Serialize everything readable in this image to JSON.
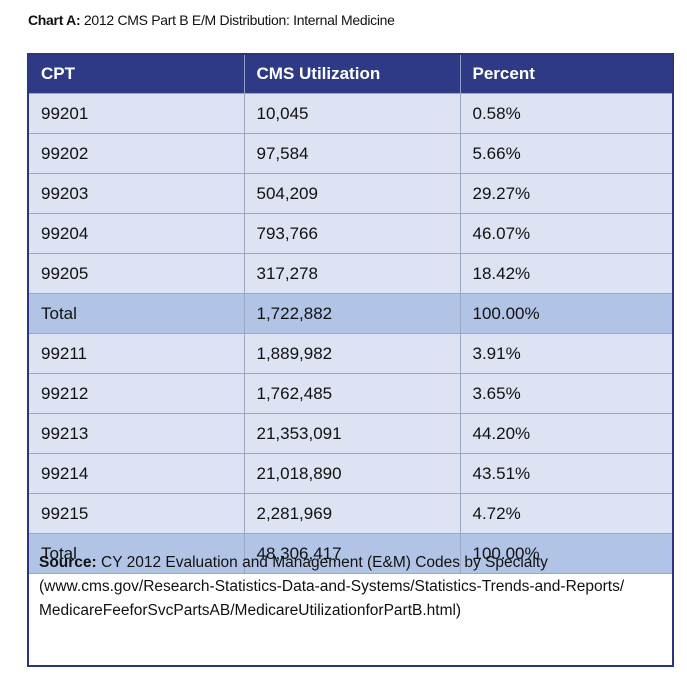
{
  "caption": {
    "lead": "Chart A:",
    "text": "2012 CMS Part B E/M Distribution: Internal Medicine"
  },
  "colors": {
    "header": "#2f3a86",
    "row": "#dde3f2",
    "total_row": "#b2c4e6",
    "border": "#2b3582"
  },
  "chart_data": {
    "type": "table",
    "columns": [
      "CPT",
      "CMS Utilization",
      "Percent"
    ],
    "rows": [
      [
        "99201",
        "10,045",
        "0.58%"
      ],
      [
        "99202",
        "97,584",
        "5.66%"
      ],
      [
        "99203",
        "504,209",
        "29.27%"
      ],
      [
        "99204",
        "793,766",
        "46.07%"
      ],
      [
        "99205",
        "317,278",
        "18.42%"
      ],
      [
        "Total",
        "1,722,882",
        "100.00%"
      ],
      [
        "99211",
        "1,889,982",
        "3.91%"
      ],
      [
        "99212",
        "1,762,485",
        "3.65%"
      ],
      [
        "99213",
        "21,353,091",
        "44.20%"
      ],
      [
        "99214",
        "21,018,890",
        "43.51%"
      ],
      [
        "99215",
        "2,281,969",
        "4.72%"
      ],
      [
        "Total",
        "48,306,417",
        "100.00%"
      ]
    ]
  },
  "source": {
    "lead": "Source:",
    "text": "CY 2012 Evaluation and Management (E&M) Codes by Specialty (www.cms.gov/Research-Statistics-Data-and-Systems/Statistics-Trends-and-Reports/ MedicareFeeforSvcPartsAB/MedicareUtilizationforPartB.html)"
  }
}
